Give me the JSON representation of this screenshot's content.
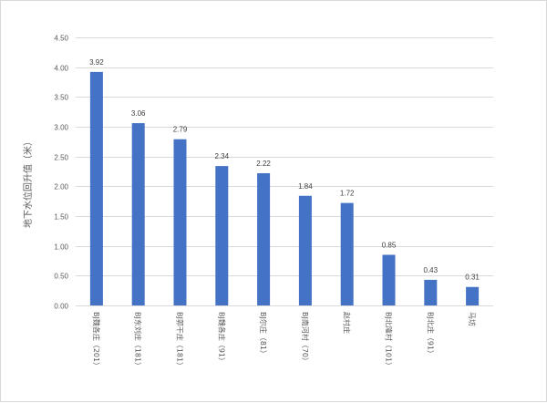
{
  "chart_data": {
    "type": "bar",
    "title": "",
    "xlabel": "",
    "ylabel": "地下水位回升值（米）",
    "ylim": [
      0,
      4.5
    ],
    "ytick_step": 0.5,
    "grid": true,
    "legend": "none",
    "bar_color": "#4472c4",
    "categories": [
      "BJ魏各庄（201）",
      "BJ东刘庄（181）",
      "BJ郭干庄（181）",
      "BJ魏各庄（91）",
      "BJ尔庄（81）",
      "BJ南河村（70）",
      "赵村庄",
      "BJ北隆村（101）",
      "BJ北庄（91）",
      "马坊"
    ],
    "values": [
      3.92,
      3.06,
      2.79,
      2.34,
      2.22,
      1.84,
      1.72,
      0.85,
      0.43,
      0.31
    ],
    "data_labels": [
      "3.92",
      "3.06",
      "2.79",
      "2.34",
      "2.22",
      "1.84",
      "1.72",
      "0.85",
      "0.43",
      "0.31"
    ],
    "ytick_labels": [
      "0.00",
      "0.50",
      "1.00",
      "1.50",
      "2.00",
      "2.50",
      "3.00",
      "3.50",
      "4.00",
      "4.50"
    ]
  }
}
